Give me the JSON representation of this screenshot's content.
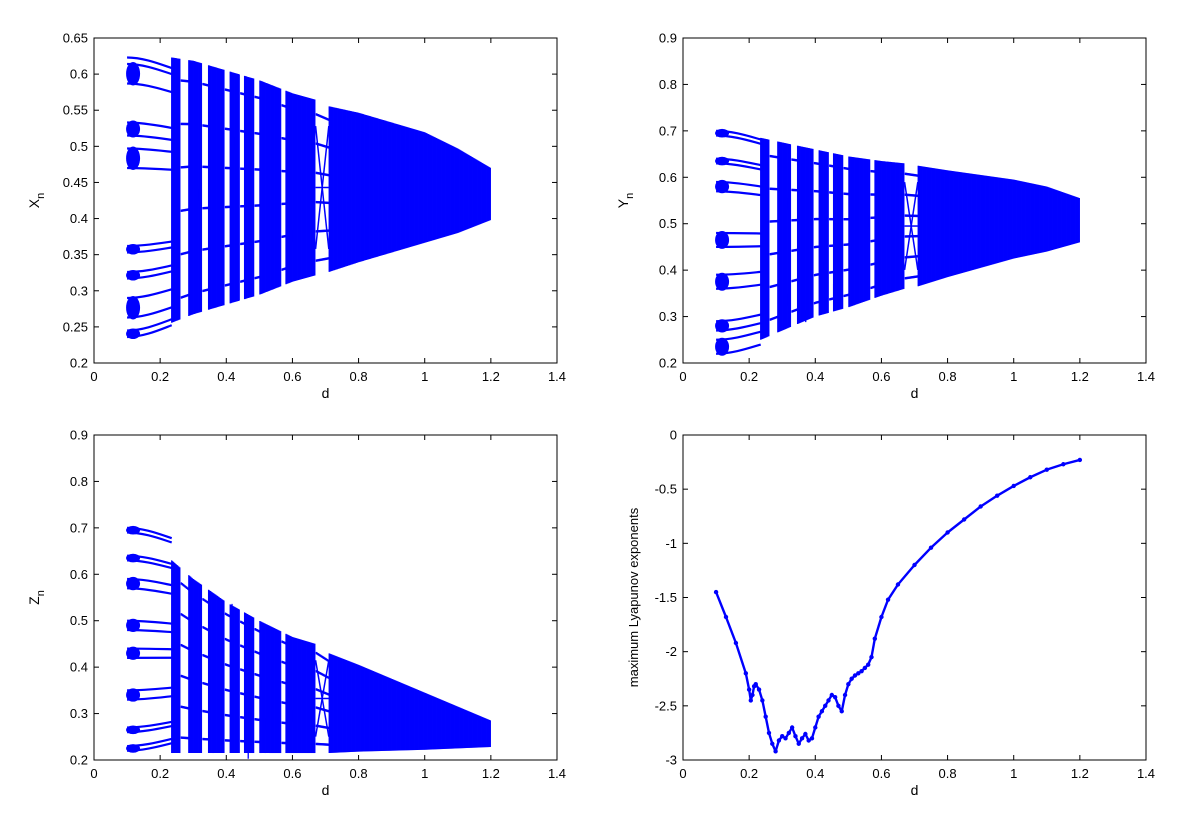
{
  "colors": {
    "series": "#0000ff",
    "axis": "#000000",
    "background": "#ffffff"
  },
  "chart_data": [
    {
      "type": "scatter",
      "title": "",
      "xlabel": "d",
      "ylabel_main": "X",
      "ylabel_sub": "n",
      "xlim": [
        0,
        1.4
      ],
      "ylim": [
        0.15,
        0.65
      ],
      "xticks": [
        "0",
        "0.2",
        "0.4",
        "0.6",
        "0.8",
        "1",
        "1.2",
        "1.4"
      ],
      "yticks": [
        "0.2",
        "0.25",
        "0.3",
        "0.35",
        "0.4",
        "0.45",
        "0.5",
        "0.55",
        "0.6",
        "0.65"
      ],
      "grid": false,
      "description": "bifurcation diagram of X_n versus d",
      "periodic_branches_at_d_0_1": [
        0.19,
        0.2,
        0.22,
        0.25,
        0.28,
        0.29,
        0.32,
        0.33,
        0.45,
        0.48,
        0.5,
        0.52,
        0.58,
        0.61,
        0.62
      ],
      "chaotic_band": {
        "d": [
          0.235,
          0.3,
          0.4,
          0.5,
          0.6,
          0.67,
          0.71,
          0.8,
          0.9,
          1.0,
          1.1,
          1.2
        ],
        "low": [
          0.212,
          0.225,
          0.24,
          0.255,
          0.275,
          0.285,
          0.29,
          0.305,
          0.32,
          0.335,
          0.35,
          0.37
        ],
        "high": [
          0.62,
          0.615,
          0.6,
          0.585,
          0.565,
          0.555,
          0.545,
          0.535,
          0.52,
          0.505,
          0.48,
          0.45
        ]
      },
      "periodic_windows_d": [
        [
          0.26,
          0.285
        ],
        [
          0.325,
          0.345
        ],
        [
          0.395,
          0.41
        ],
        [
          0.44,
          0.455
        ],
        [
          0.485,
          0.5
        ],
        [
          0.565,
          0.58
        ],
        [
          0.67,
          0.71
        ]
      ]
    },
    {
      "type": "scatter",
      "title": "",
      "xlabel": "d",
      "ylabel_main": "Y",
      "ylabel_sub": "n",
      "xlim": [
        0,
        1.4
      ],
      "ylim": [
        0.2,
        0.9
      ],
      "xticks": [
        "0",
        "0.2",
        "0.4",
        "0.6",
        "0.8",
        "1",
        "1.2",
        "1.4"
      ],
      "yticks": [
        "0.2",
        "0.3",
        "0.4",
        "0.5",
        "0.6",
        "0.7",
        "0.8",
        "0.9"
      ],
      "grid": false,
      "description": "bifurcation diagram of Y_n versus d",
      "periodic_branches_at_d_0_1": [
        0.22,
        0.25,
        0.27,
        0.29,
        0.36,
        0.39,
        0.45,
        0.48,
        0.57,
        0.59,
        0.63,
        0.64,
        0.69,
        0.7
      ],
      "chaotic_band": {
        "d": [
          0.235,
          0.3,
          0.4,
          0.5,
          0.6,
          0.67,
          0.71,
          0.8,
          0.9,
          1.0,
          1.1,
          1.2
        ],
        "low": [
          0.25,
          0.27,
          0.3,
          0.32,
          0.345,
          0.36,
          0.365,
          0.385,
          0.405,
          0.425,
          0.44,
          0.46
        ],
        "high": [
          0.685,
          0.675,
          0.66,
          0.645,
          0.635,
          0.63,
          0.625,
          0.615,
          0.605,
          0.595,
          0.58,
          0.555
        ]
      },
      "periodic_windows_d": [
        [
          0.26,
          0.285
        ],
        [
          0.325,
          0.345
        ],
        [
          0.395,
          0.41
        ],
        [
          0.44,
          0.455
        ],
        [
          0.485,
          0.5
        ],
        [
          0.565,
          0.58
        ],
        [
          0.67,
          0.71
        ]
      ]
    },
    {
      "type": "scatter",
      "title": "",
      "xlabel": "d",
      "ylabel_main": "Z",
      "ylabel_sub": "n",
      "xlim": [
        0,
        1.4
      ],
      "ylim": [
        0.2,
        0.9
      ],
      "xticks": [
        "0",
        "0.2",
        "0.4",
        "0.6",
        "0.8",
        "1",
        "1.2",
        "1.4"
      ],
      "yticks": [
        "0.2",
        "0.3",
        "0.4",
        "0.5",
        "0.6",
        "0.7",
        "0.8",
        "0.9"
      ],
      "grid": false,
      "description": "bifurcation diagram of Z_n versus d",
      "periodic_branches_at_d_0_1": [
        0.22,
        0.23,
        0.26,
        0.27,
        0.33,
        0.35,
        0.42,
        0.44,
        0.48,
        0.5,
        0.57,
        0.59,
        0.63,
        0.64,
        0.69,
        0.7
      ],
      "chaotic_band": {
        "d": [
          0.235,
          0.3,
          0.4,
          0.5,
          0.6,
          0.67,
          0.71,
          0.8,
          0.9,
          1.0,
          1.1,
          1.2
        ],
        "low": [
          0.215,
          0.215,
          0.215,
          0.215,
          0.215,
          0.215,
          0.215,
          0.218,
          0.22,
          0.222,
          0.225,
          0.228
        ],
        "high": [
          0.63,
          0.59,
          0.54,
          0.5,
          0.465,
          0.45,
          0.43,
          0.405,
          0.375,
          0.345,
          0.315,
          0.285
        ]
      },
      "periodic_windows_d": [
        [
          0.26,
          0.285
        ],
        [
          0.325,
          0.345
        ],
        [
          0.395,
          0.41
        ],
        [
          0.44,
          0.455
        ],
        [
          0.485,
          0.5
        ],
        [
          0.565,
          0.58
        ],
        [
          0.67,
          0.71
        ]
      ]
    },
    {
      "type": "scatter",
      "title": "",
      "xlabel": "d",
      "ylabel": "maximum Lyapunov exponents",
      "xlim": [
        0,
        1.4
      ],
      "ylim": [
        -3,
        0
      ],
      "xticks": [
        "0",
        "0.2",
        "0.4",
        "0.6",
        "0.8",
        "1",
        "1.2",
        "1.4"
      ],
      "yticks": [
        "-3",
        "-2.5",
        "-2",
        "-1.5",
        "-1",
        "-0.5",
        "0"
      ],
      "grid": false,
      "x": [
        0.1,
        0.13,
        0.16,
        0.19,
        0.2,
        0.205,
        0.21,
        0.215,
        0.22,
        0.23,
        0.24,
        0.25,
        0.26,
        0.27,
        0.28,
        0.29,
        0.3,
        0.31,
        0.32,
        0.33,
        0.34,
        0.35,
        0.36,
        0.37,
        0.38,
        0.39,
        0.4,
        0.41,
        0.42,
        0.43,
        0.44,
        0.45,
        0.46,
        0.47,
        0.48,
        0.49,
        0.5,
        0.51,
        0.52,
        0.53,
        0.54,
        0.55,
        0.56,
        0.57,
        0.58,
        0.6,
        0.62,
        0.65,
        0.7,
        0.75,
        0.8,
        0.85,
        0.9,
        0.95,
        1.0,
        1.05,
        1.1,
        1.15,
        1.2
      ],
      "y": [
        -1.45,
        -1.68,
        -1.92,
        -2.2,
        -2.35,
        -2.45,
        -2.4,
        -2.32,
        -2.3,
        -2.35,
        -2.45,
        -2.6,
        -2.75,
        -2.85,
        -2.92,
        -2.82,
        -2.78,
        -2.8,
        -2.75,
        -2.7,
        -2.78,
        -2.85,
        -2.8,
        -2.76,
        -2.82,
        -2.8,
        -2.7,
        -2.6,
        -2.55,
        -2.5,
        -2.45,
        -2.4,
        -2.42,
        -2.5,
        -2.55,
        -2.4,
        -2.3,
        -2.25,
        -2.22,
        -2.2,
        -2.18,
        -2.15,
        -2.12,
        -2.05,
        -1.88,
        -1.68,
        -1.52,
        -1.38,
        -1.2,
        -1.04,
        -0.9,
        -0.78,
        -0.66,
        -0.56,
        -0.47,
        -0.39,
        -0.32,
        -0.27,
        -0.23
      ]
    }
  ]
}
